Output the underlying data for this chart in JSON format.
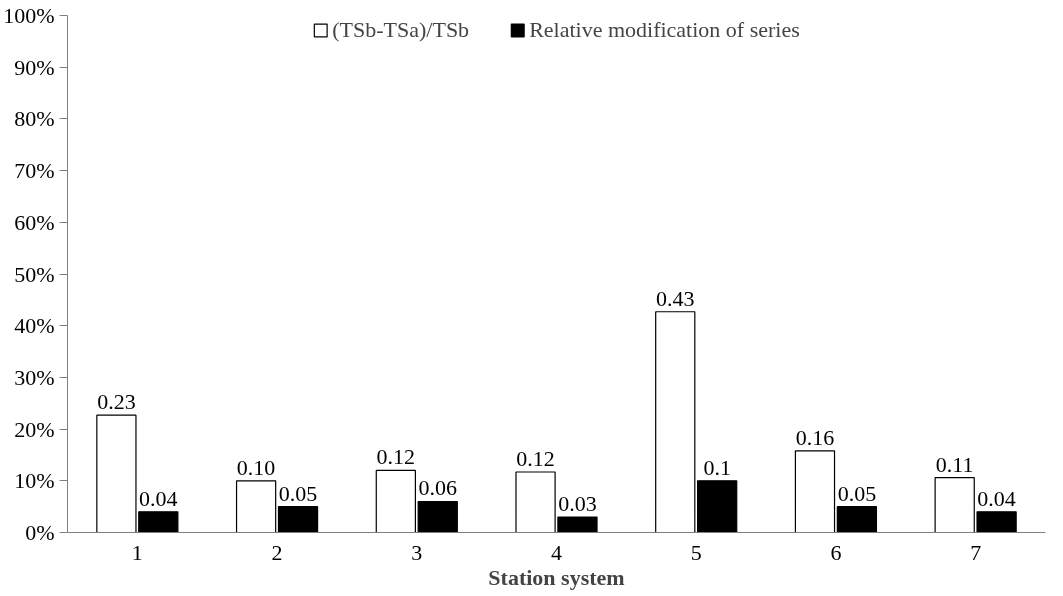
{
  "chart_data": {
    "type": "bar",
    "xlabel": "Station system",
    "categories": [
      "1",
      "2",
      "3",
      "4",
      "5",
      "6",
      "7"
    ],
    "series": [
      {
        "name": "(TSb-TSa)/TSb",
        "color": "#ffffff",
        "values": [
          0.227,
          0.1,
          0.12,
          0.117,
          0.427,
          0.158,
          0.106
        ],
        "value_labels": [
          "0.23",
          "0.10",
          "0.12",
          "0.12",
          "0.43",
          "0.16",
          "0.11"
        ]
      },
      {
        "name": "Relative modification of series",
        "color": "#000000",
        "values": [
          0.04,
          0.05,
          0.06,
          0.03,
          0.1,
          0.05,
          0.04
        ],
        "value_labels": [
          "0.04",
          "0.05",
          "0.06",
          "0.03",
          "0.1",
          "0.05",
          "0.04"
        ]
      }
    ],
    "ylim": [
      0,
      1
    ],
    "yticks": [
      {
        "value": 0,
        "label": "0%"
      },
      {
        "value": 0.1,
        "label": "10%"
      },
      {
        "value": 0.2,
        "label": "20%"
      },
      {
        "value": 0.3,
        "label": "30%"
      },
      {
        "value": 0.4,
        "label": "40%"
      },
      {
        "value": 0.5,
        "label": "50%"
      },
      {
        "value": 0.6,
        "label": "60%"
      },
      {
        "value": 0.7,
        "label": "70%"
      },
      {
        "value": 0.8,
        "label": "80%"
      },
      {
        "value": 0.9,
        "label": "90%"
      },
      {
        "value": 1,
        "label": "100%"
      }
    ],
    "grid": false,
    "legend": "top"
  }
}
